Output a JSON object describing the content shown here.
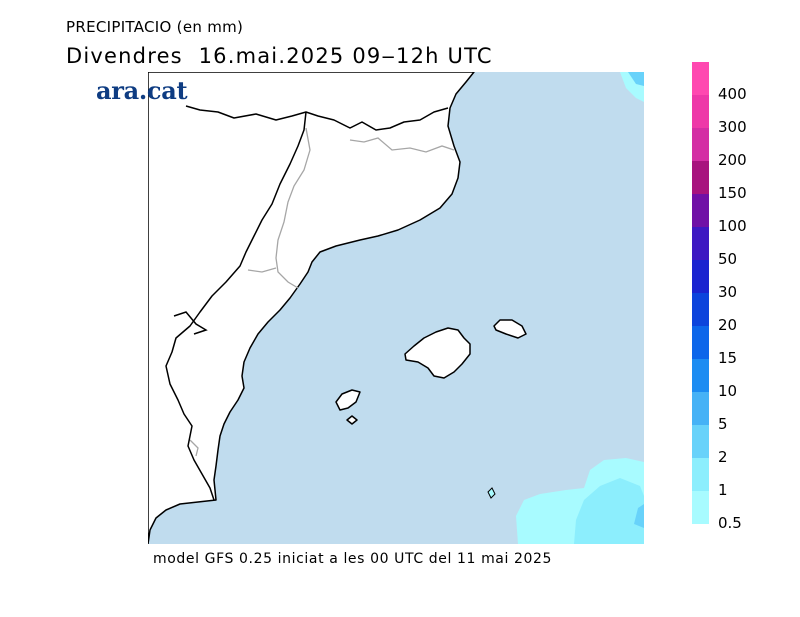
{
  "title": "PRECIPITACIO (en mm)",
  "subtitle": "Divendres  16.mai.2025 09‒12h UTC",
  "brand": "ara.cat",
  "footer": "model GFS 0.25 iniciat a les 00 UTC del 11 mai 2025",
  "map": {
    "region": "Catalonia, Valencia and the Balearic Islands",
    "sea_color": "#c0dcee",
    "land_color": "#ffffff",
    "coast_color": "#000000",
    "border_color": "#a6a6a6"
  },
  "legend": [
    {
      "label": "400",
      "color": "#ff48b0"
    },
    {
      "label": "300",
      "color": "#ee38a8"
    },
    {
      "label": "200",
      "color": "#d42ea4"
    },
    {
      "label": "150",
      "color": "#a8137e"
    },
    {
      "label": "100",
      "color": "#7010a6"
    },
    {
      "label": "50",
      "color": "#3e18c2"
    },
    {
      "label": "30",
      "color": "#1a24d0"
    },
    {
      "label": "20",
      "color": "#0c44dc"
    },
    {
      "label": "15",
      "color": "#0c66ea"
    },
    {
      "label": "10",
      "color": "#1c8cf2"
    },
    {
      "label": "5",
      "color": "#46b2f6"
    },
    {
      "label": "2",
      "color": "#68d2fa"
    },
    {
      "label": "1",
      "color": "#8ceefd"
    },
    {
      "label": "0.5",
      "color": "#a8fbff"
    }
  ],
  "precip_icon_names": [
    "precipitation-area"
  ]
}
